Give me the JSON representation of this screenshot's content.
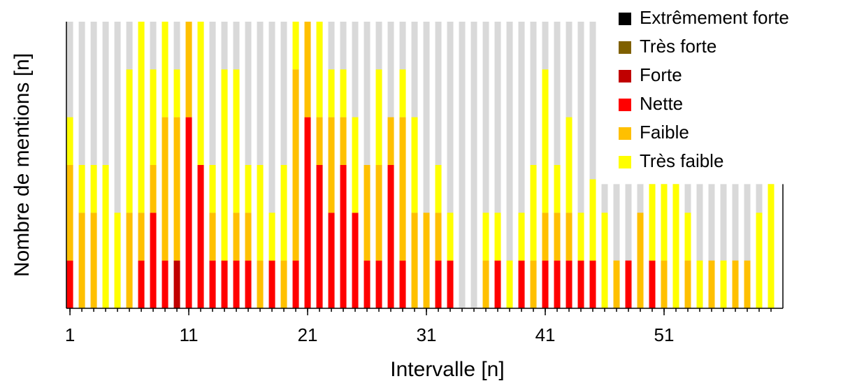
{
  "chart_data": {
    "type": "stacked-bar",
    "xlabel": "Intervalle [n]",
    "ylabel": "Nombre de mentions [n]",
    "x": [
      1,
      2,
      3,
      4,
      5,
      6,
      7,
      8,
      9,
      10,
      11,
      12,
      13,
      14,
      15,
      16,
      17,
      18,
      19,
      20,
      21,
      22,
      23,
      24,
      25,
      26,
      27,
      28,
      29,
      30,
      31,
      32,
      33,
      34,
      35,
      36,
      37,
      38,
      39,
      40,
      41,
      42,
      43,
      44,
      45,
      46,
      47,
      48,
      49,
      50,
      51,
      52,
      53,
      54,
      55,
      56,
      57,
      58,
      59,
      60
    ],
    "xlim": [
      0.7,
      61
    ],
    "xticks": [
      1,
      11,
      21,
      31,
      41,
      51
    ],
    "ylim": [
      0,
      6
    ],
    "totals": {
      "color": "#d9d9d9",
      "values": [
        6,
        6,
        6,
        6,
        6,
        6,
        6,
        6,
        6,
        6,
        6,
        6,
        6,
        6,
        6,
        6,
        6,
        6,
        6,
        6,
        6,
        6,
        6,
        6,
        6,
        6,
        6,
        6,
        6,
        6,
        6,
        6,
        6,
        6,
        6,
        6,
        6,
        6,
        6,
        6,
        6,
        6,
        6,
        6,
        6,
        2.6,
        2.6,
        2.6,
        2.6,
        2.6,
        2.6,
        2.6,
        2.6,
        2.6,
        2.6,
        2.6,
        2.6,
        2.6,
        2.6,
        2.6
      ]
    },
    "legend": "top-right",
    "series": [
      {
        "name": "Extrêmement forte",
        "color": "#000000",
        "values": [
          0,
          0,
          0,
          0,
          0,
          0,
          0,
          0,
          0,
          0,
          0,
          0,
          0,
          0,
          0,
          0,
          0,
          0,
          0,
          0,
          0,
          0,
          0,
          0,
          0,
          0,
          0,
          0,
          0,
          0,
          0,
          0,
          0,
          0,
          0,
          0,
          0,
          0,
          0,
          0,
          0,
          0,
          0,
          0,
          0,
          0,
          0,
          0,
          0,
          0,
          0,
          0,
          0,
          0,
          0,
          0,
          0,
          0,
          0,
          0
        ]
      },
      {
        "name": "Très forte",
        "color": "#7f6000",
        "values": [
          0,
          0,
          0,
          0,
          0,
          0,
          0,
          0,
          0,
          0,
          0,
          0,
          0,
          0,
          0,
          0,
          0,
          0,
          0,
          0,
          0,
          0,
          0,
          0,
          0,
          0,
          0,
          0,
          0,
          0,
          0,
          0,
          0,
          0,
          0,
          0,
          0,
          0,
          0,
          0,
          0,
          0,
          0,
          0,
          0,
          0,
          0,
          0,
          0,
          0,
          0,
          0,
          0,
          0,
          0,
          0,
          0,
          0,
          0,
          0
        ]
      },
      {
        "name": "Forte",
        "color": "#c00000",
        "values": [
          0,
          0,
          0,
          0,
          0,
          0,
          0,
          0,
          0,
          1,
          0,
          0,
          0,
          0,
          0,
          0,
          0,
          0,
          0,
          0,
          0,
          0,
          0,
          0,
          0,
          0,
          0,
          0,
          0,
          0,
          0,
          0,
          0,
          0,
          0,
          0,
          0,
          0,
          0,
          0,
          0,
          0,
          0,
          0,
          0,
          0,
          0,
          0,
          0,
          0,
          0,
          0,
          0,
          0,
          0,
          0,
          0,
          0,
          0,
          0
        ]
      },
      {
        "name": "Nette",
        "color": "#ff0000",
        "values": [
          1,
          0,
          0,
          0,
          0,
          0,
          1,
          2,
          1,
          0,
          4,
          3,
          1,
          1,
          1,
          1,
          0,
          1,
          0,
          1,
          4,
          3,
          2,
          3,
          2,
          1,
          1,
          3,
          1,
          0,
          0,
          1,
          1,
          0,
          0,
          0,
          1,
          0,
          1,
          0,
          1,
          1,
          1,
          1,
          1,
          0,
          0,
          1,
          0,
          1,
          0,
          0,
          0,
          0,
          0,
          0,
          0,
          0,
          0,
          0
        ]
      },
      {
        "name": "Faible",
        "color": "#ffc000",
        "values": [
          2,
          2,
          2,
          0,
          0,
          2,
          1,
          1,
          3,
          3,
          2,
          0,
          1,
          0,
          1,
          1,
          1,
          0,
          1,
          4,
          2,
          1,
          2,
          1,
          0,
          2,
          2,
          1,
          3,
          2,
          2,
          1,
          0,
          0,
          0,
          1,
          0,
          0,
          0,
          1,
          1,
          1,
          1,
          0,
          0,
          0,
          1,
          0,
          2,
          0,
          1,
          0,
          1,
          0,
          1,
          0,
          1,
          1,
          0,
          0
        ]
      },
      {
        "name": "Très faible",
        "color": "#ffff00",
        "values": [
          1,
          1,
          1,
          3,
          2,
          3,
          4,
          2,
          2,
          1,
          0,
          3,
          1,
          4,
          3,
          1,
          2,
          1,
          2,
          1,
          0,
          2,
          1,
          1,
          2,
          0,
          2,
          0,
          1,
          2,
          0,
          1,
          1,
          0,
          0,
          1,
          1,
          1,
          1,
          2,
          3,
          1,
          2,
          1,
          1.7,
          2,
          0,
          0,
          0,
          1.6,
          1.6,
          2.6,
          1,
          1,
          0,
          1,
          0,
          0,
          2,
          2.6
        ]
      }
    ]
  }
}
